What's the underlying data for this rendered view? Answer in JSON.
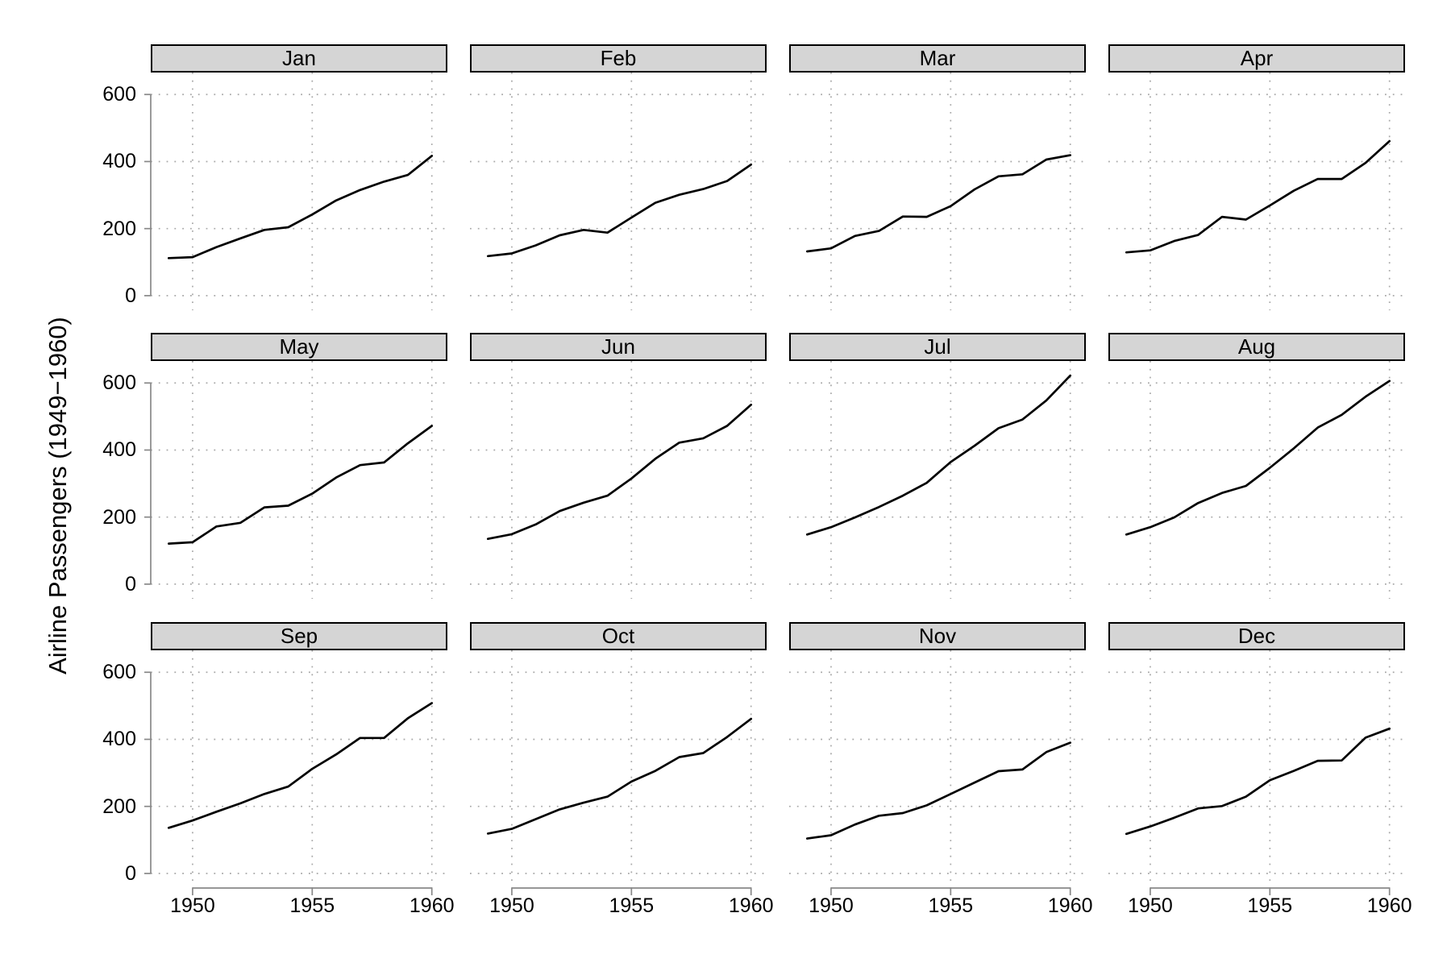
{
  "figure": {
    "y_axis_title": "Airline Passengers (1949−1960)"
  },
  "chart_data": {
    "type": "line",
    "title": "",
    "xlabel": "",
    "ylabel": "Airline Passengers (1949−1960)",
    "facet_layout": {
      "rows": 3,
      "cols": 4
    },
    "facets": [
      "Jan",
      "Feb",
      "Mar",
      "Apr",
      "May",
      "Jun",
      "Jul",
      "Aug",
      "Sep",
      "Oct",
      "Nov",
      "Dec"
    ],
    "x": [
      1949,
      1950,
      1951,
      1952,
      1953,
      1954,
      1955,
      1956,
      1957,
      1958,
      1959,
      1960
    ],
    "series": [
      {
        "name": "Jan",
        "values": [
          112,
          115,
          145,
          171,
          196,
          204,
          242,
          284,
          315,
          340,
          360,
          417
        ]
      },
      {
        "name": "Feb",
        "values": [
          118,
          126,
          150,
          180,
          196,
          188,
          233,
          277,
          301,
          318,
          342,
          391
        ]
      },
      {
        "name": "Mar",
        "values": [
          132,
          141,
          178,
          193,
          236,
          235,
          267,
          317,
          356,
          362,
          406,
          419
        ]
      },
      {
        "name": "Apr",
        "values": [
          129,
          135,
          163,
          181,
          235,
          227,
          269,
          313,
          348,
          348,
          396,
          461
        ]
      },
      {
        "name": "May",
        "values": [
          121,
          125,
          172,
          183,
          229,
          234,
          270,
          318,
          355,
          363,
          420,
          472
        ]
      },
      {
        "name": "Jun",
        "values": [
          135,
          149,
          178,
          218,
          243,
          264,
          315,
          374,
          422,
          435,
          472,
          535
        ]
      },
      {
        "name": "Jul",
        "values": [
          148,
          170,
          199,
          230,
          264,
          302,
          364,
          413,
          465,
          491,
          548,
          622
        ]
      },
      {
        "name": "Aug",
        "values": [
          148,
          170,
          199,
          242,
          272,
          293,
          347,
          405,
          467,
          505,
          559,
          606
        ]
      },
      {
        "name": "Sep",
        "values": [
          136,
          158,
          184,
          209,
          237,
          259,
          312,
          355,
          404,
          404,
          463,
          508
        ]
      },
      {
        "name": "Oct",
        "values": [
          119,
          133,
          162,
          191,
          211,
          229,
          274,
          306,
          347,
          359,
          407,
          461
        ]
      },
      {
        "name": "Nov",
        "values": [
          104,
          114,
          146,
          172,
          180,
          203,
          237,
          271,
          305,
          310,
          362,
          390
        ]
      },
      {
        "name": "Dec",
        "values": [
          118,
          140,
          166,
          194,
          201,
          229,
          278,
          306,
          336,
          337,
          405,
          432
        ]
      }
    ],
    "x_ticks": [
      1950,
      1955,
      1960
    ],
    "x_tick_labels": [
      "1950",
      "1955",
      "1960"
    ],
    "y_ticks": [
      0,
      200,
      400,
      600
    ],
    "y_tick_labels": [
      "0",
      "200",
      "400",
      "600"
    ],
    "x_range_padded": [
      1948.25,
      1960.65
    ],
    "y_range_padded": [
      -43.5,
      665.5
    ],
    "grid": "dotted",
    "legend": "none",
    "line_color": "#000000",
    "strip_fill": "#d5d5d5",
    "strip_border": "#000000",
    "axis_color": "#888888",
    "grid_color": "#a8a8a8",
    "text_color": "#000000"
  }
}
